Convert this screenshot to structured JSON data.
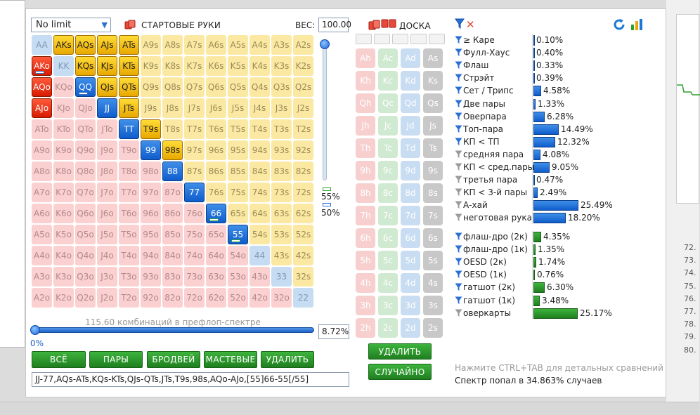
{
  "limit_select": {
    "value": "No limit"
  },
  "starting_hands": {
    "title": "СТАРТОВЫЕ РУКИ",
    "weight_label": "ВЕС:",
    "weight_value": "100.00"
  },
  "grid": [
    [
      "AA",
      "AKs",
      "AQs",
      "AJs",
      "ATs",
      "A9s",
      "A8s",
      "A7s",
      "A6s",
      "A5s",
      "A4s",
      "A3s",
      "A2s"
    ],
    [
      "AKo",
      "KK",
      "KQs",
      "KJs",
      "KTs",
      "K9s",
      "K8s",
      "K7s",
      "K6s",
      "K5s",
      "K4s",
      "K3s",
      "K2s"
    ],
    [
      "AQo",
      "KQo",
      "QQ",
      "QJs",
      "QTs",
      "Q9s",
      "Q8s",
      "Q7s",
      "Q6s",
      "Q5s",
      "Q4s",
      "Q3s",
      "Q2s"
    ],
    [
      "AJo",
      "KJo",
      "QJo",
      "JJ",
      "JTs",
      "J9s",
      "J8s",
      "J7s",
      "J6s",
      "J5s",
      "J4s",
      "J3s",
      "J2s"
    ],
    [
      "ATo",
      "KTo",
      "QTo",
      "JTo",
      "TT",
      "T9s",
      "T8s",
      "T7s",
      "T6s",
      "T5s",
      "T4s",
      "T3s",
      "T2s"
    ],
    [
      "A9o",
      "K9o",
      "Q9o",
      "J9o",
      "T9o",
      "99",
      "98s",
      "97s",
      "96s",
      "95s",
      "94s",
      "93s",
      "92s"
    ],
    [
      "A8o",
      "K8o",
      "Q8o",
      "J8o",
      "T8o",
      "98o",
      "88",
      "87s",
      "86s",
      "85s",
      "84s",
      "83s",
      "82s"
    ],
    [
      "A7o",
      "K7o",
      "Q7o",
      "J7o",
      "T7o",
      "97o",
      "87o",
      "77",
      "76s",
      "75s",
      "74s",
      "73s",
      "72s"
    ],
    [
      "A6o",
      "K6o",
      "Q6o",
      "J6o",
      "T6o",
      "96o",
      "86o",
      "76o",
      "66",
      "65s",
      "64s",
      "63s",
      "62s"
    ],
    [
      "A5o",
      "K5o",
      "Q5o",
      "J5o",
      "T5o",
      "95o",
      "85o",
      "75o",
      "65o",
      "55",
      "54s",
      "53s",
      "52s"
    ],
    [
      "A4o",
      "K4o",
      "Q4o",
      "J4o",
      "T4o",
      "94o",
      "84o",
      "74o",
      "64o",
      "54o",
      "44",
      "43s",
      "42s"
    ],
    [
      "A3o",
      "K3o",
      "Q3o",
      "J3o",
      "T3o",
      "93o",
      "83o",
      "73o",
      "63o",
      "53o",
      "43o",
      "33",
      "32s"
    ],
    [
      "A2o",
      "K2o",
      "Q2o",
      "J2o",
      "T2o",
      "92o",
      "82o",
      "72o",
      "62o",
      "52o",
      "42o",
      "32o",
      "22"
    ]
  ],
  "selected_hands": [
    "AKs",
    "AQs",
    "AJs",
    "ATs",
    "AKo",
    "KQs",
    "KJs",
    "KTs",
    "AQo",
    "QQ",
    "QJs",
    "QTs",
    "AJo",
    "JJ",
    "JTs",
    "TT",
    "T9s",
    "99",
    "98s",
    "88",
    "77",
    "66",
    "55"
  ],
  "partial_hands": [
    "AKo",
    "QQ",
    "66",
    "55"
  ],
  "slider_labels": {
    "green": "55%",
    "blue": "50%"
  },
  "combos_text": "115.60 комбинаций в префлоп-спектре",
  "range_percent": {
    "value": "8.72%",
    "slider_min": "0%"
  },
  "range_buttons": {
    "all": "ВСЁ",
    "pairs": "ПАРЫ",
    "broadway": "БРОДВЕЙ",
    "suited": "МАСТЕВЫЕ",
    "delete": "УДАЛИТЬ"
  },
  "range_text": "JJ-77,AQs-ATs,KQs-KTs,QJs-QTs,JTs,T9s,98s,AQo-AJo,[55]66-55[/55]",
  "board": {
    "title": "ДОСКА",
    "deck": [
      [
        "Ah",
        "Ac",
        "Ad",
        "As"
      ],
      [
        "Kh",
        "Kc",
        "Kd",
        "Ks"
      ],
      [
        "Qh",
        "Qc",
        "Qd",
        "Qs"
      ],
      [
        "Jh",
        "Jc",
        "Jd",
        "Js"
      ],
      [
        "Th",
        "Tc",
        "Td",
        "Ts"
      ],
      [
        "9h",
        "9c",
        "9d",
        "9s"
      ],
      [
        "8h",
        "8c",
        "8d",
        "8s"
      ],
      [
        "7h",
        "7c",
        "7d",
        "7s"
      ],
      [
        "6h",
        "6c",
        "6d",
        "6s"
      ],
      [
        "5h",
        "5c",
        "5d",
        "5s"
      ],
      [
        "4h",
        "4c",
        "4d",
        "4s"
      ],
      [
        "3h",
        "3c",
        "3d",
        "3s"
      ],
      [
        "2h",
        "2c",
        "2d",
        "2s"
      ]
    ],
    "delete_btn": "УДАЛИТЬ",
    "random_btn": "СЛУЧАЙНО"
  },
  "stats": [
    {
      "label": "≥ Каре",
      "value": "0.10%",
      "pct": 0.1,
      "filter": "blue",
      "bar": "blue"
    },
    {
      "label": "Фулл-Хаус",
      "value": "0.40%",
      "pct": 0.4,
      "filter": "blue",
      "bar": "blue"
    },
    {
      "label": "Флаш",
      "value": "0.33%",
      "pct": 0.33,
      "filter": "blue",
      "bar": "blue"
    },
    {
      "label": "Стрэйт",
      "value": "0.39%",
      "pct": 0.39,
      "filter": "blue",
      "bar": "blue"
    },
    {
      "label": "Сет / Трипс",
      "value": "4.58%",
      "pct": 4.58,
      "filter": "blue",
      "bar": "blue"
    },
    {
      "label": "Две пары",
      "value": "1.33%",
      "pct": 1.33,
      "filter": "blue",
      "bar": "blue"
    },
    {
      "label": "Оверпара",
      "value": "6.28%",
      "pct": 6.28,
      "filter": "blue",
      "bar": "blue"
    },
    {
      "label": "Топ-пара",
      "value": "14.49%",
      "pct": 14.49,
      "filter": "blue",
      "bar": "blue"
    },
    {
      "label": "КП < ТП",
      "value": "12.32%",
      "pct": 12.32,
      "filter": "blue",
      "bar": "blue"
    },
    {
      "label": "средняя пара",
      "value": "4.08%",
      "pct": 4.08,
      "filter": "gray",
      "bar": "blue"
    },
    {
      "label": "КП < сред.пары",
      "value": "9.05%",
      "pct": 9.05,
      "filter": "gray",
      "bar": "blue"
    },
    {
      "label": "третья пара",
      "value": "0.47%",
      "pct": 0.47,
      "filter": "gray",
      "bar": "blue"
    },
    {
      "label": "КП < 3-й пары",
      "value": "2.49%",
      "pct": 2.49,
      "filter": "gray",
      "bar": "blue"
    },
    {
      "label": "А-хай",
      "value": "25.49%",
      "pct": 25.49,
      "filter": "gray",
      "bar": "blue"
    },
    {
      "label": "неготовая рука",
      "value": "18.20%",
      "pct": 18.2,
      "filter": "gray",
      "bar": "blue"
    }
  ],
  "draws": [
    {
      "label": "флаш-дро (2к)",
      "value": "4.35%",
      "pct": 4.35,
      "filter": "blue",
      "bar": "green"
    },
    {
      "label": "флаш-дро (1к)",
      "value": "1.35%",
      "pct": 1.35,
      "filter": "blue",
      "bar": "green"
    },
    {
      "label": "OESD (2к)",
      "value": "1.74%",
      "pct": 1.74,
      "filter": "blue",
      "bar": "green"
    },
    {
      "label": "OESD (1к)",
      "value": "0.76%",
      "pct": 0.76,
      "filter": "blue",
      "bar": "green"
    },
    {
      "label": "гатшот (2к)",
      "value": "6.30%",
      "pct": 6.3,
      "filter": "blue",
      "bar": "green"
    },
    {
      "label": "гатшот (1к)",
      "value": "3.48%",
      "pct": 3.48,
      "filter": "blue",
      "bar": "green"
    },
    {
      "label": "оверкарты",
      "value": "25.17%",
      "pct": 25.17,
      "filter": "gray",
      "bar": "green"
    }
  ],
  "hint_text": "Нажмите CTRL+TAB для детальных сравнений",
  "hit_text": "Спектр попал в 34.863% случаев",
  "right_panel_numbers": [
    "72.",
    "73.",
    "74.",
    "75.",
    "76.",
    "77.",
    "78.",
    "79.",
    "80."
  ]
}
